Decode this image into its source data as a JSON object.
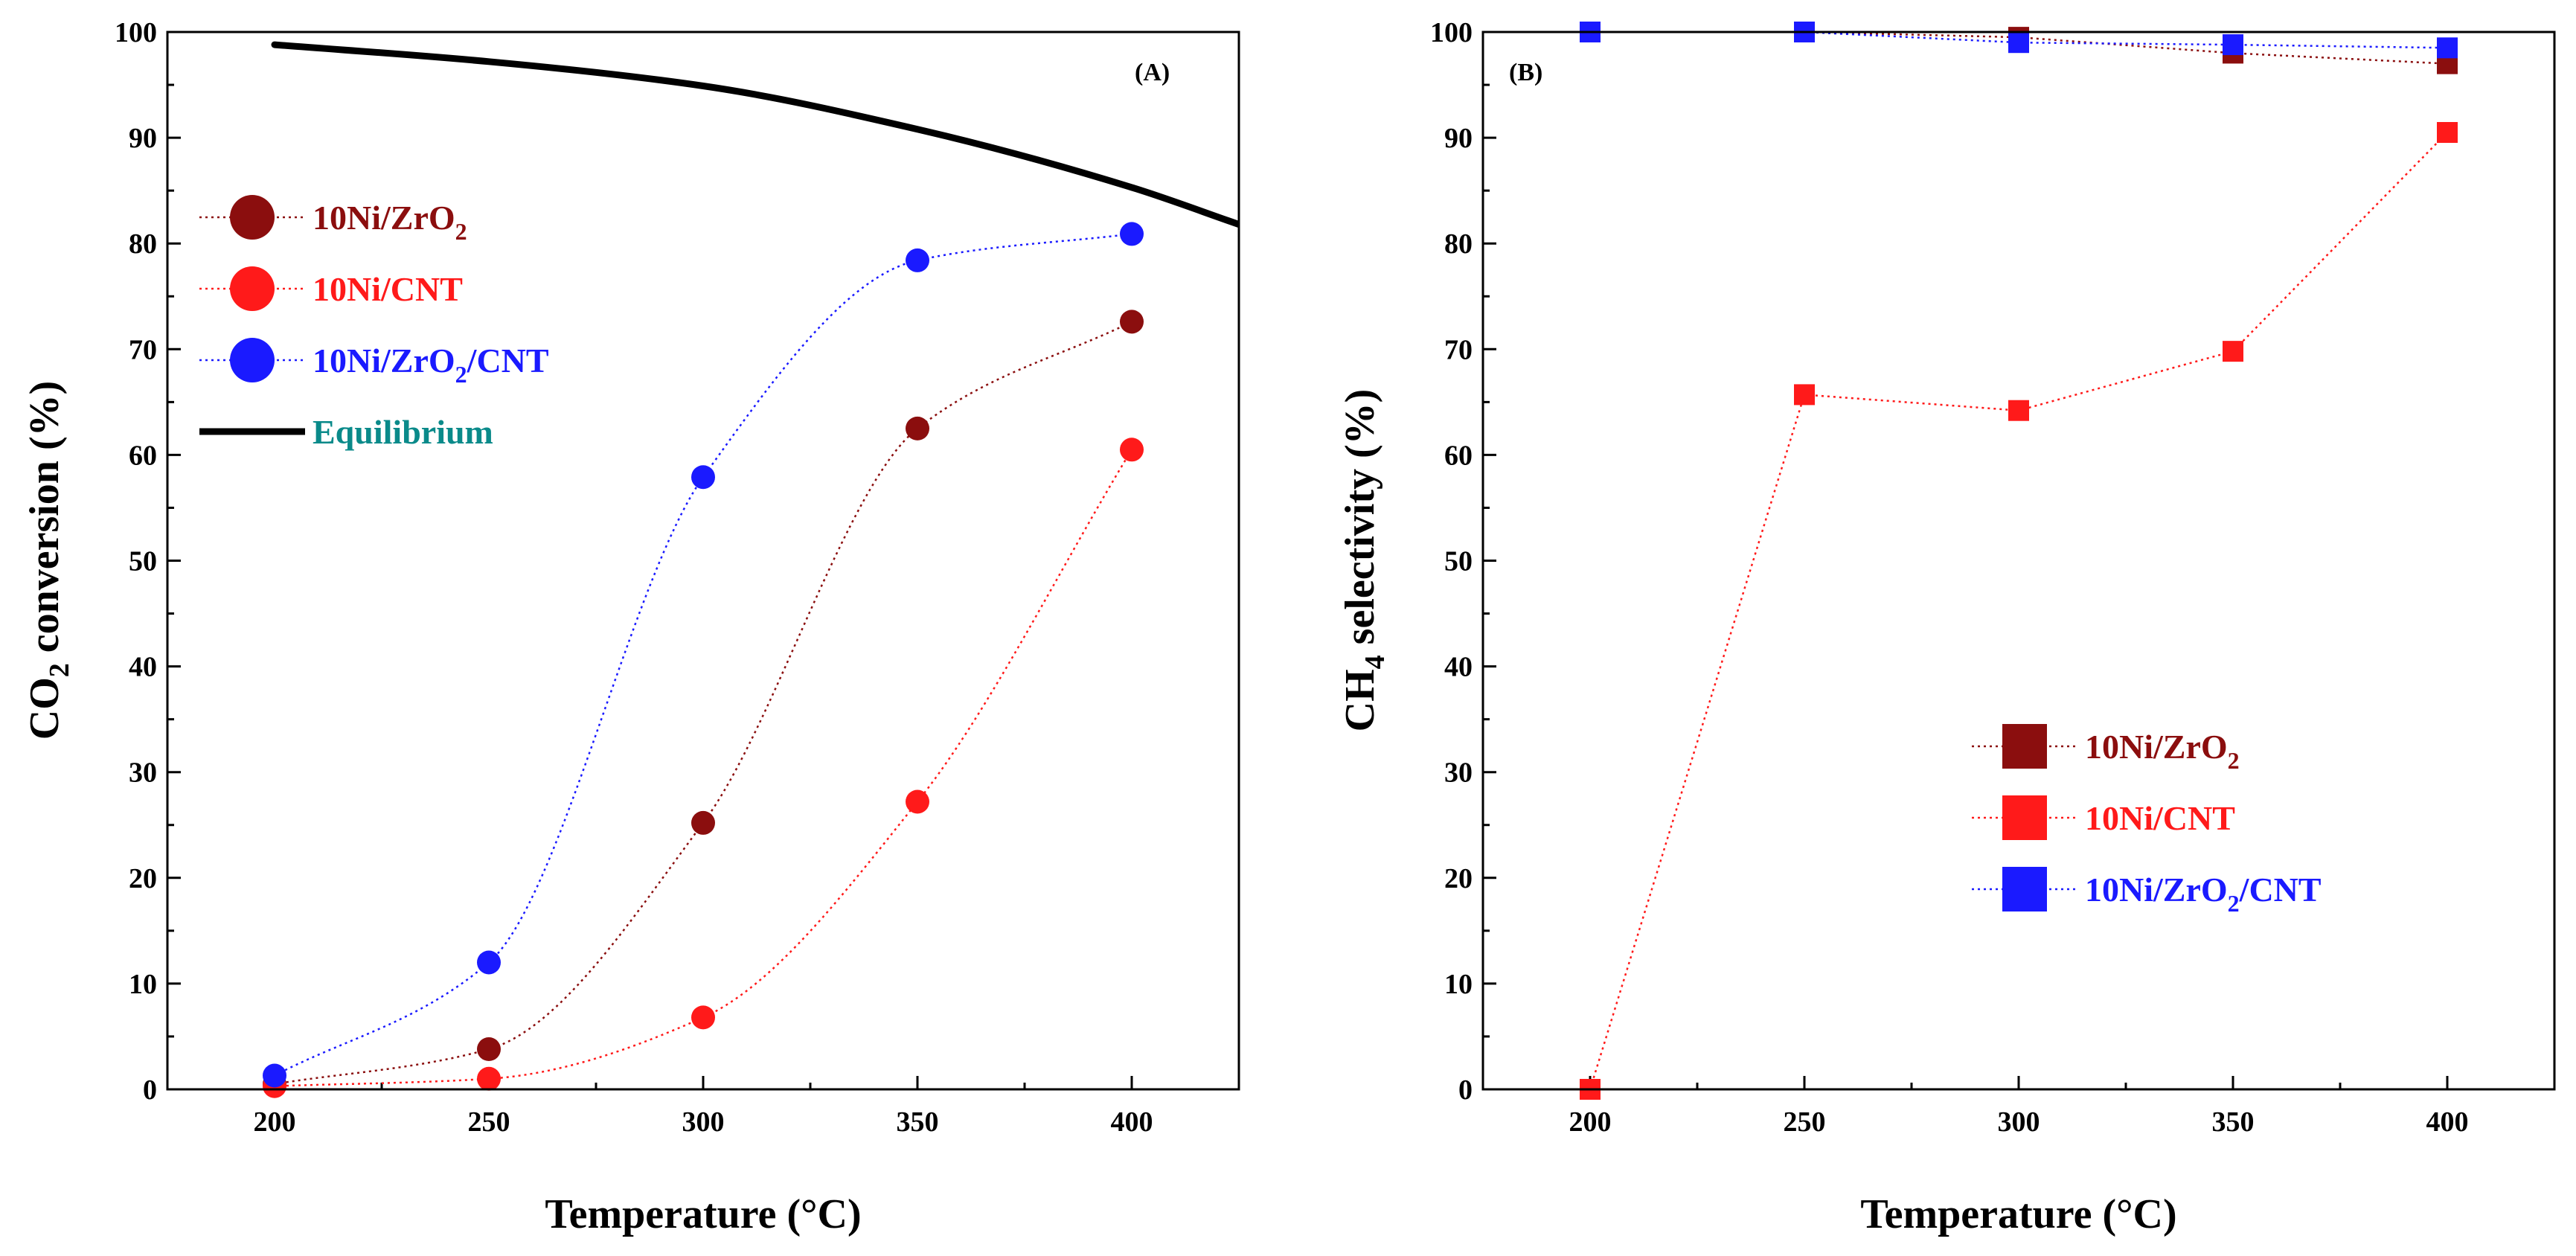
{
  "colors": {
    "zro2": "#8b0e0e",
    "cnt": "#ff1a1a",
    "zro2cnt": "#1a1aff",
    "equilibrium": "#000000",
    "equilibrium_label": "#0a8a8a"
  },
  "chart_data": [
    {
      "type": "scatter",
      "panel_label": "(A)",
      "xlabel": "Temperature (°C)",
      "ylabel_parts": {
        "pre": "CO",
        "sub": "2",
        "post": " conversion (%)"
      },
      "xlim": [
        175,
        425
      ],
      "ylim": [
        0,
        100
      ],
      "xticks": [
        200,
        250,
        300,
        350,
        400
      ],
      "yticks": [
        0,
        10,
        20,
        30,
        40,
        50,
        60,
        70,
        80,
        90,
        100
      ],
      "legend_position": "top-left",
      "series": [
        {
          "name": "10Ni/ZrO2",
          "key": "zro2",
          "label_pre": "10Ni/ZrO",
          "label_sub": "2",
          "label_post": "",
          "marker": "circle",
          "line": "dotted-fit",
          "x": [
            200,
            250,
            300,
            350,
            400
          ],
          "y": [
            0.5,
            3.8,
            25.2,
            62.5,
            72.6
          ]
        },
        {
          "name": "10Ni/CNT",
          "key": "cnt",
          "label_pre": "10Ni/CNT",
          "label_sub": "",
          "label_post": "",
          "marker": "circle",
          "line": "dotted-fit",
          "x": [
            200,
            250,
            300,
            350,
            400
          ],
          "y": [
            0.3,
            1.0,
            6.8,
            27.2,
            60.5
          ]
        },
        {
          "name": "10Ni/ZrO2/CNT",
          "key": "zro2cnt",
          "label_pre": "10Ni/ZrO",
          "label_sub": "2",
          "label_post": "/CNT",
          "marker": "circle",
          "line": "dotted-fit",
          "x": [
            200,
            250,
            300,
            350,
            400
          ],
          "y": [
            1.3,
            12.0,
            57.9,
            78.4,
            80.9
          ]
        },
        {
          "name": "Equilibrium",
          "key": "equilibrium",
          "label_pre": "Equilibrium",
          "label_sub": "",
          "label_post": "",
          "marker": "none",
          "line": "solid",
          "x": [
            200,
            250,
            300,
            350,
            400,
            425
          ],
          "y": [
            98.8,
            97.2,
            94.9,
            90.8,
            85.3,
            81.8
          ]
        }
      ]
    },
    {
      "type": "line",
      "panel_label": "(B)",
      "xlabel": "Temperature (°C)",
      "ylabel_parts": {
        "pre": "CH",
        "sub": "4",
        "post": " selectivity (%)"
      },
      "xlim": [
        175,
        425
      ],
      "ylim": [
        0,
        100
      ],
      "xticks": [
        200,
        250,
        300,
        350,
        400
      ],
      "yticks": [
        0,
        10,
        20,
        30,
        40,
        50,
        60,
        70,
        80,
        90,
        100
      ],
      "legend_position": "center-right",
      "series": [
        {
          "name": "10Ni/ZrO2",
          "key": "zro2",
          "label_pre": "10Ni/ZrO",
          "label_sub": "2",
          "label_post": "",
          "marker": "square",
          "line": "dotted",
          "x": [
            200,
            250,
            300,
            350,
            400
          ],
          "y": [
            100,
            100,
            99.5,
            98.0,
            97.0
          ]
        },
        {
          "name": "10Ni/CNT",
          "key": "cnt",
          "label_pre": "10Ni/CNT",
          "label_sub": "",
          "label_post": "",
          "marker": "square",
          "line": "dotted",
          "x": [
            200,
            250,
            300,
            350,
            400
          ],
          "y": [
            0,
            65.7,
            64.2,
            69.8,
            90.5
          ]
        },
        {
          "name": "10Ni/ZrO2/CNT",
          "key": "zro2cnt",
          "label_pre": "10Ni/ZrO",
          "label_sub": "2",
          "label_post": "/CNT",
          "marker": "square",
          "line": "dotted",
          "x": [
            200,
            250,
            300,
            350,
            400
          ],
          "y": [
            100,
            100,
            99.0,
            98.8,
            98.5
          ]
        }
      ]
    }
  ]
}
